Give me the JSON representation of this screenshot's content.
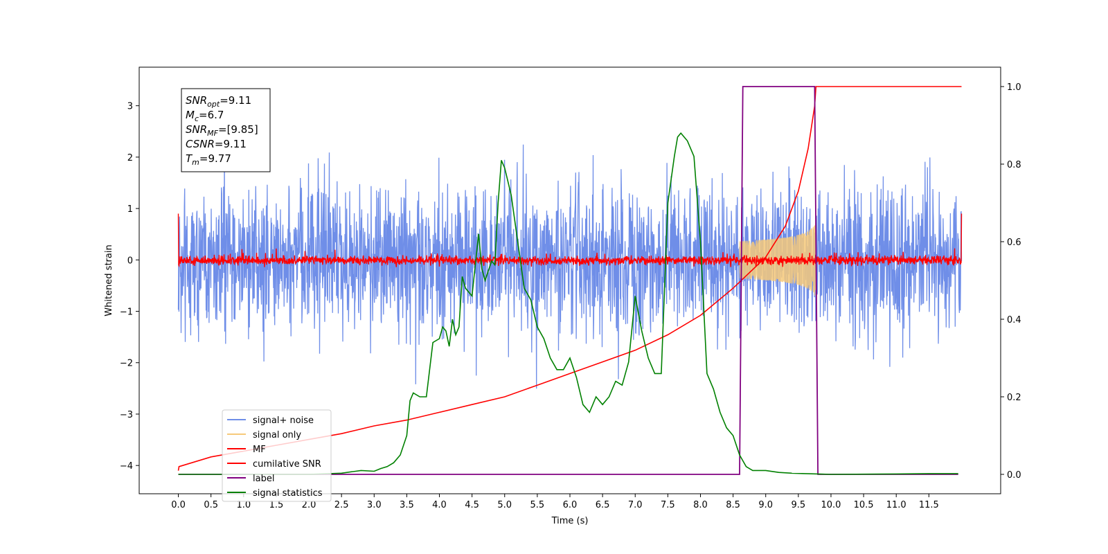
{
  "chart_data": {
    "type": "line",
    "xlabel": "Time (s)",
    "ylabel": "Whitened strain",
    "xlim": [
      -0.6,
      12.6
    ],
    "ylim": [
      -4.55,
      3.75
    ],
    "ylim_right": [
      -0.05,
      1.05
    ],
    "x_ticks": [
      "0.0",
      "0.5",
      "1.0",
      "1.5",
      "2.0",
      "2.5",
      "3.0",
      "3.5",
      "4.0",
      "4.5",
      "5.0",
      "5.5",
      "6.0",
      "6.5",
      "7.0",
      "7.5",
      "8.0",
      "8.5",
      "9.0",
      "9.5",
      "10.0",
      "10.5",
      "11.0",
      "11.5"
    ],
    "y_ticks_left": [
      "3",
      "2",
      "1",
      "0",
      "−1",
      "−2",
      "−3",
      "−4"
    ],
    "y_ticks_right": [
      "1.0",
      "0.8",
      "0.6",
      "0.4",
      "0.2",
      "0.0"
    ],
    "grid": false,
    "legend_position": "lower-left",
    "annotation": {
      "lines": [
        {
          "sym": "SNR",
          "sub": "opt",
          "value": "=9.11"
        },
        {
          "sym": "M",
          "sub": "c",
          "value": "=6.7"
        },
        {
          "sym": "SNR",
          "sub": "MF",
          "value": "=[9.85]"
        },
        {
          "sym": "CSNR",
          "sub": "",
          "value": "=9.11"
        },
        {
          "sym": "T",
          "sub": "m",
          "value": "=9.77"
        }
      ]
    },
    "series": [
      {
        "name": "signal+ noise",
        "color": "#6f8ee8",
        "axis": "left",
        "style": "noise",
        "x_range": [
          0.0,
          12.0
        ],
        "amplitude": 1.0
      },
      {
        "name": "signal only",
        "color": "#f6c97a",
        "axis": "left",
        "style": "chirp",
        "x_range": [
          8.6,
          9.77
        ],
        "peak_amplitude": 0.7
      },
      {
        "name": "MF",
        "color": "#ff0000",
        "axis": "left",
        "style": "noise",
        "x_range": [
          0.0,
          12.0
        ],
        "amplitude": 0.12
      },
      {
        "name": "cumilative SNR",
        "color": "#ff0000",
        "axis": "right",
        "x": [
          0.0,
          0.01,
          0.5,
          1.0,
          1.5,
          2.0,
          2.5,
          3.0,
          3.5,
          4.0,
          4.5,
          5.0,
          5.5,
          6.0,
          6.5,
          7.0,
          7.5,
          8.0,
          8.5,
          9.0,
          9.3,
          9.5,
          9.65,
          9.75,
          9.77,
          10.0,
          11.0,
          12.0
        ],
        "y": [
          0.0,
          0.02,
          0.045,
          0.06,
          0.075,
          0.09,
          0.105,
          0.125,
          0.14,
          0.16,
          0.18,
          0.2,
          0.23,
          0.26,
          0.29,
          0.32,
          0.36,
          0.41,
          0.48,
          0.56,
          0.64,
          0.73,
          0.84,
          0.95,
          1.0,
          1.0,
          1.0,
          1.0
        ]
      },
      {
        "name": "label",
        "color": "#800080",
        "axis": "right",
        "x": [
          0.0,
          8.6,
          8.65,
          9.75,
          9.8,
          11.95
        ],
        "y": [
          0.0,
          0.0,
          1.0,
          1.0,
          0.0,
          0.0
        ]
      },
      {
        "name": "signal statistics",
        "color": "#008000",
        "axis": "right",
        "x": [
          0.0,
          1.0,
          2.0,
          2.5,
          2.8,
          3.0,
          3.1,
          3.2,
          3.3,
          3.4,
          3.5,
          3.55,
          3.6,
          3.7,
          3.8,
          3.9,
          4.0,
          4.05,
          4.1,
          4.15,
          4.2,
          4.25,
          4.3,
          4.35,
          4.4,
          4.5,
          4.6,
          4.65,
          4.7,
          4.8,
          4.85,
          4.9,
          4.95,
          5.0,
          5.1,
          5.2,
          5.3,
          5.4,
          5.5,
          5.6,
          5.7,
          5.8,
          5.9,
          6.0,
          6.1,
          6.2,
          6.3,
          6.4,
          6.5,
          6.6,
          6.7,
          6.8,
          6.9,
          7.0,
          7.1,
          7.2,
          7.3,
          7.4,
          7.5,
          7.6,
          7.65,
          7.7,
          7.8,
          7.9,
          8.0,
          8.1,
          8.2,
          8.3,
          8.4,
          8.5,
          8.6,
          8.7,
          8.8,
          9.0,
          9.2,
          9.4,
          9.6,
          9.8,
          10.0,
          11.0,
          11.5,
          11.95
        ],
        "y": [
          0.0,
          0.0,
          0.0,
          0.003,
          0.01,
          0.008,
          0.015,
          0.02,
          0.03,
          0.05,
          0.1,
          0.19,
          0.21,
          0.2,
          0.2,
          0.34,
          0.35,
          0.38,
          0.37,
          0.33,
          0.4,
          0.36,
          0.38,
          0.51,
          0.48,
          0.46,
          0.62,
          0.53,
          0.5,
          0.55,
          0.54,
          0.7,
          0.81,
          0.79,
          0.72,
          0.6,
          0.48,
          0.45,
          0.38,
          0.35,
          0.3,
          0.27,
          0.27,
          0.3,
          0.25,
          0.18,
          0.16,
          0.2,
          0.18,
          0.2,
          0.24,
          0.23,
          0.29,
          0.46,
          0.37,
          0.3,
          0.26,
          0.26,
          0.7,
          0.82,
          0.87,
          0.88,
          0.86,
          0.82,
          0.6,
          0.26,
          0.22,
          0.16,
          0.12,
          0.1,
          0.05,
          0.02,
          0.01,
          0.01,
          0.005,
          0.003,
          0.002,
          0.001,
          0.0,
          0.001,
          0.002,
          0.002
        ]
      }
    ]
  }
}
